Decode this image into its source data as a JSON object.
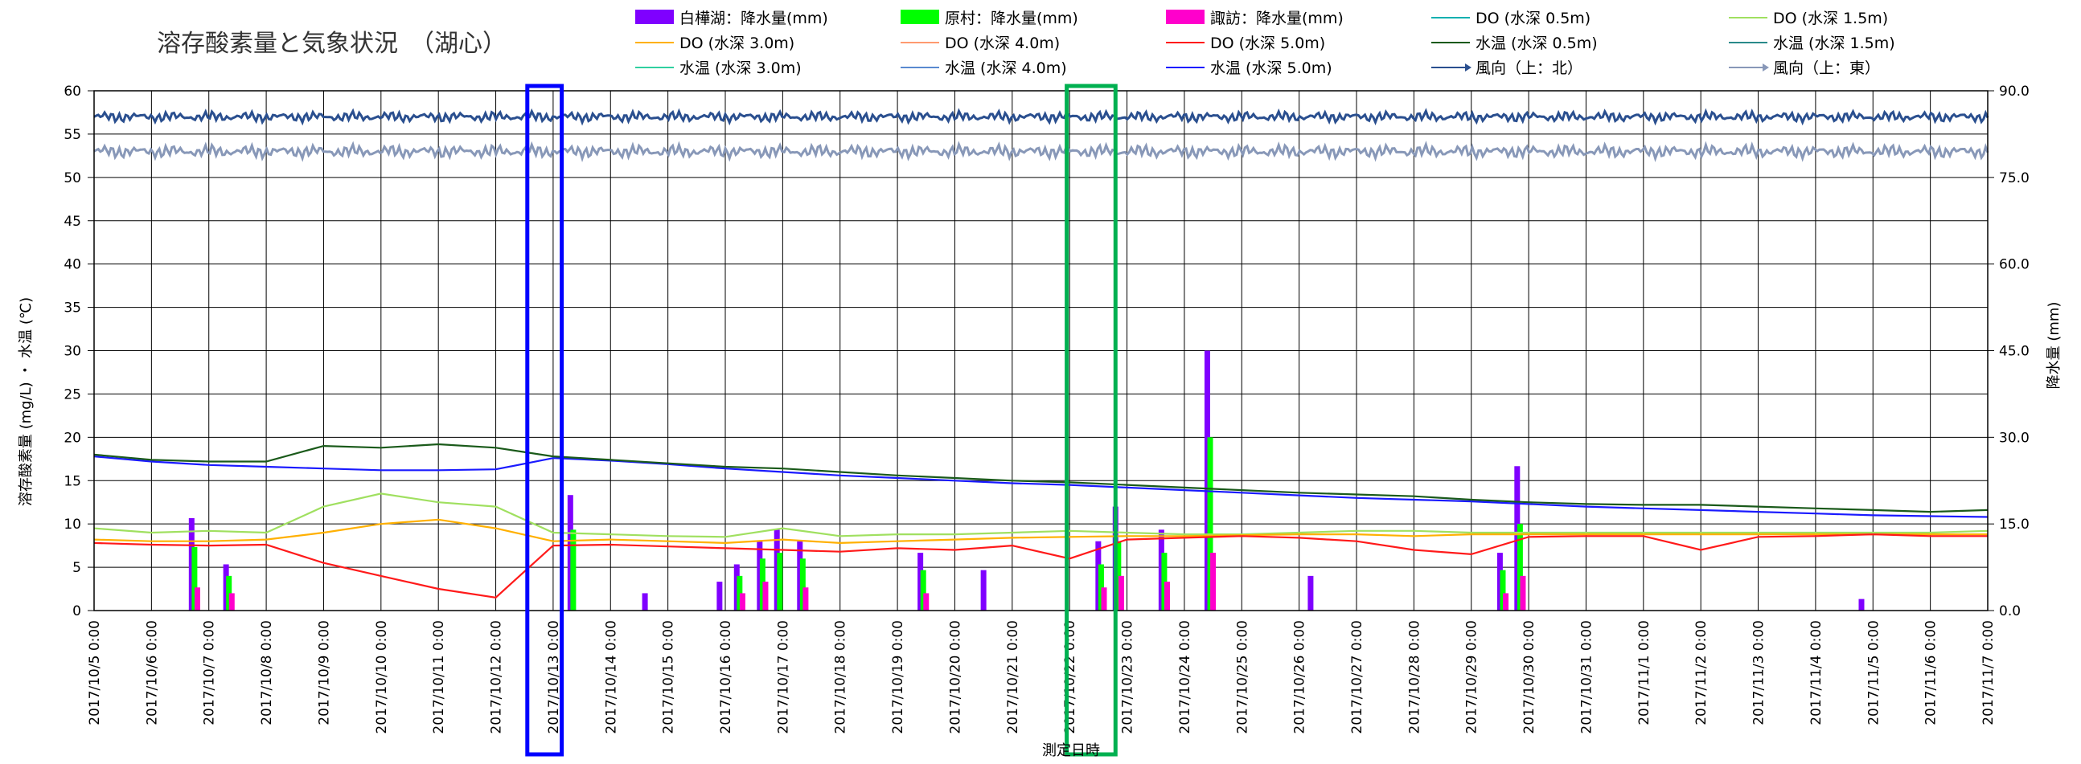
{
  "chart_data": {
    "type": "line",
    "title": "溶存酸素量と気象状況　（湖心）",
    "xlabel": "測定日時",
    "ylabel_left": "溶存酸素量 (mg/L) ・ 水温 (℃)",
    "ylabel_right": "降水量 (mm)",
    "ylim_left": [
      0,
      60
    ],
    "ylim_right": [
      0,
      90
    ],
    "yticks_left": [
      "0",
      "5",
      "10",
      "15",
      "20",
      "25",
      "30",
      "35",
      "40",
      "45",
      "50",
      "55",
      "60"
    ],
    "yticks_right": [
      "0.0",
      "15.0",
      "30.0",
      "45.0",
      "60.0",
      "75.0",
      "90.0"
    ],
    "x_categories": [
      "2017/10/5 0:00",
      "2017/10/6 0:00",
      "2017/10/7 0:00",
      "2017/10/8 0:00",
      "2017/10/9 0:00",
      "2017/10/10 0:00",
      "2017/10/11 0:00",
      "2017/10/12 0:00",
      "2017/10/13 0:00",
      "2017/10/14 0:00",
      "2017/10/15 0:00",
      "2017/10/16 0:00",
      "2017/10/17 0:00",
      "2017/10/18 0:00",
      "2017/10/19 0:00",
      "2017/10/20 0:00",
      "2017/10/21 0:00",
      "2017/10/22 0:00",
      "2017/10/23 0:00",
      "2017/10/24 0:00",
      "2017/10/25 0:00",
      "2017/10/26 0:00",
      "2017/10/27 0:00",
      "2017/10/28 0:00",
      "2017/10/29 0:00",
      "2017/10/30 0:00",
      "2017/10/31 0:00",
      "2017/11/1 0:00",
      "2017/11/2 0:00",
      "2017/11/3 0:00",
      "2017/11/4 0:00",
      "2017/11/5 0:00",
      "2017/11/6 0:00",
      "2017/11/7 0:00"
    ],
    "grid": true,
    "legend_position": "top",
    "legend": [
      {
        "label": "白樺湖：降水量(mm)",
        "kind": "bar",
        "color": "#7f00ff"
      },
      {
        "label": "原村：降水量(mm)",
        "kind": "bar",
        "color": "#00ff00"
      },
      {
        "label": "諏訪：降水量(mm)",
        "kind": "bar",
        "color": "#ff00cc"
      },
      {
        "label": "DO (水深 0.5m)",
        "kind": "line",
        "color": "#00b0b0"
      },
      {
        "label": "DO (水深 1.5m)",
        "kind": "line",
        "color": "#a0e060"
      },
      {
        "label": "DO (水深 3.0m)",
        "kind": "line",
        "color": "#ffb000"
      },
      {
        "label": "DO (水深 4.0m)",
        "kind": "line",
        "color": "#ff9a70"
      },
      {
        "label": "DO (水深 5.0m)",
        "kind": "line",
        "color": "#ff1a1a"
      },
      {
        "label": "水温 (水深 0.5m)",
        "kind": "line",
        "color": "#1a5a1a"
      },
      {
        "label": "水温 (水深 1.5m)",
        "kind": "line",
        "color": "#2a8a8a"
      },
      {
        "label": "水温 (水深 3.0m)",
        "kind": "line",
        "color": "#30d0a0"
      },
      {
        "label": "水温 (水深 4.0m)",
        "kind": "line",
        "color": "#5a8ad0"
      },
      {
        "label": "水温 (水深 5.0m)",
        "kind": "line",
        "color": "#1a1aff"
      },
      {
        "label": "風向（上：北）",
        "kind": "arrow",
        "color": "#2a4f8f"
      },
      {
        "label": "風向（上：東）",
        "kind": "arrow",
        "color": "#8898b8"
      }
    ],
    "series": [
      {
        "name": "水温 (水深 5.0m)",
        "axis": "left",
        "x": [
          0,
          1,
          2,
          3,
          4,
          5,
          6,
          7,
          8,
          9,
          10,
          11,
          12,
          13,
          14,
          15,
          16,
          17,
          18,
          19,
          20,
          21,
          22,
          23,
          24,
          25,
          26,
          27,
          28,
          29,
          30,
          31,
          32,
          33
        ],
        "values": [
          17.8,
          17.2,
          16.8,
          16.6,
          16.4,
          16.2,
          16.2,
          16.3,
          17.6,
          17.3,
          16.9,
          16.4,
          16.0,
          15.6,
          15.3,
          15.0,
          14.7,
          14.5,
          14.2,
          13.9,
          13.6,
          13.3,
          13.0,
          12.8,
          12.6,
          12.3,
          12.0,
          11.8,
          11.6,
          11.4,
          11.2,
          11.0,
          10.9,
          10.8
        ]
      },
      {
        "name": "水温 (水深 0.5m)",
        "axis": "left",
        "x": [
          0,
          1,
          2,
          3,
          4,
          5,
          6,
          7,
          8,
          9,
          10,
          11,
          12,
          13,
          14,
          15,
          16,
          17,
          18,
          19,
          20,
          21,
          22,
          23,
          24,
          25,
          26,
          27,
          28,
          29,
          30,
          31,
          32,
          33
        ],
        "values": [
          18.0,
          17.4,
          17.2,
          17.2,
          19.0,
          18.8,
          19.2,
          18.8,
          17.8,
          17.4,
          17.0,
          16.6,
          16.4,
          16.0,
          15.6,
          15.3,
          15.0,
          14.8,
          14.5,
          14.2,
          13.9,
          13.6,
          13.4,
          13.2,
          12.8,
          12.5,
          12.3,
          12.2,
          12.2,
          12.0,
          11.8,
          11.6,
          11.4,
          11.6
        ]
      },
      {
        "name": "DO (水深 1.5m)",
        "axis": "left",
        "x": [
          0,
          1,
          2,
          3,
          4,
          5,
          6,
          7,
          8,
          9,
          10,
          11,
          12,
          13,
          14,
          15,
          16,
          17,
          18,
          19,
          20,
          21,
          22,
          23,
          24,
          25,
          26,
          27,
          28,
          29,
          30,
          31,
          32,
          33
        ],
        "values": [
          9.5,
          9.0,
          9.2,
          9.0,
          12.0,
          13.5,
          12.5,
          12.0,
          9.0,
          8.8,
          8.6,
          8.5,
          9.5,
          8.6,
          8.8,
          8.8,
          9.0,
          9.2,
          9.0,
          8.8,
          8.8,
          9.0,
          9.2,
          9.2,
          9.0,
          9.0,
          9.0,
          9.0,
          9.0,
          9.0,
          9.0,
          9.0,
          9.0,
          9.2
        ]
      },
      {
        "name": "DO (水深 3.0m)",
        "axis": "left",
        "x": [
          0,
          1,
          2,
          3,
          4,
          5,
          6,
          7,
          8,
          9,
          10,
          11,
          12,
          13,
          14,
          15,
          16,
          17,
          18,
          19,
          20,
          21,
          22,
          23,
          24,
          25,
          26,
          27,
          28,
          29,
          30,
          31,
          32,
          33
        ],
        "values": [
          8.2,
          8.0,
          8.0,
          8.2,
          9.0,
          10.0,
          10.5,
          9.5,
          8.0,
          8.2,
          8.0,
          7.8,
          8.2,
          7.8,
          8.0,
          8.2,
          8.4,
          8.5,
          8.6,
          8.6,
          8.7,
          8.8,
          8.8,
          8.6,
          8.8,
          8.8,
          8.8,
          8.8,
          8.8,
          8.8,
          8.8,
          8.8,
          8.8,
          8.8
        ]
      },
      {
        "name": "DO (水深 5.0m)",
        "axis": "left",
        "x": [
          0,
          1,
          2,
          3,
          4,
          5,
          6,
          7,
          8,
          9,
          10,
          11,
          12,
          13,
          14,
          15,
          16,
          17,
          18,
          19,
          20,
          21,
          22,
          23,
          24,
          25,
          26,
          27,
          28,
          29,
          30,
          31,
          32,
          33
        ],
        "values": [
          7.8,
          7.6,
          7.5,
          7.6,
          5.5,
          4.0,
          2.5,
          1.5,
          7.5,
          7.6,
          7.4,
          7.2,
          7.0,
          6.8,
          7.2,
          7.0,
          7.5,
          6.0,
          8.2,
          8.4,
          8.6,
          8.4,
          8.0,
          7.0,
          6.5,
          8.5,
          8.6,
          8.6,
          7.0,
          8.5,
          8.6,
          8.8,
          8.6,
          8.6
        ]
      },
      {
        "name": "白樺湖：降水量(mm)",
        "axis": "right",
        "kind": "bar",
        "x": [
          1.7,
          2.3,
          8.3,
          9.6,
          10.9,
          11.2,
          11.6,
          11.9,
          12.3,
          14.4,
          15.5,
          17.5,
          17.8,
          18.6,
          19.4,
          21.2,
          24.5,
          24.8,
          30.8
        ],
        "values": [
          16,
          8,
          20,
          3,
          5,
          8,
          12,
          14,
          12,
          10,
          7,
          12,
          18,
          14,
          45,
          6,
          10,
          25,
          2
        ]
      },
      {
        "name": "原村：降水量(mm)",
        "axis": "right",
        "kind": "bar",
        "x": [
          1.75,
          2.35,
          8.35,
          11.25,
          11.65,
          11.95,
          12.35,
          14.45,
          17.55,
          17.85,
          18.65,
          19.45,
          24.55,
          24.85
        ],
        "values": [
          11,
          6,
          14,
          6,
          9,
          10,
          9,
          7,
          8,
          12,
          10,
          30,
          7,
          15
        ]
      },
      {
        "name": "諏訪：降水量(mm)",
        "axis": "right",
        "kind": "bar",
        "x": [
          1.8,
          2.4,
          11.3,
          11.7,
          12.4,
          14.5,
          17.6,
          17.9,
          18.7,
          19.5,
          24.6,
          24.9
        ],
        "values": [
          4,
          3,
          3,
          5,
          4,
          3,
          4,
          6,
          5,
          10,
          3,
          6
        ]
      }
    ],
    "wind_north_level": 57,
    "wind_east_level": 53,
    "highlight_boxes": [
      {
        "color": "#0000ff",
        "x_range": [
          7.55,
          8.15
        ]
      },
      {
        "color": "#00b050",
        "x_range": [
          16.95,
          17.8
        ]
      }
    ]
  }
}
